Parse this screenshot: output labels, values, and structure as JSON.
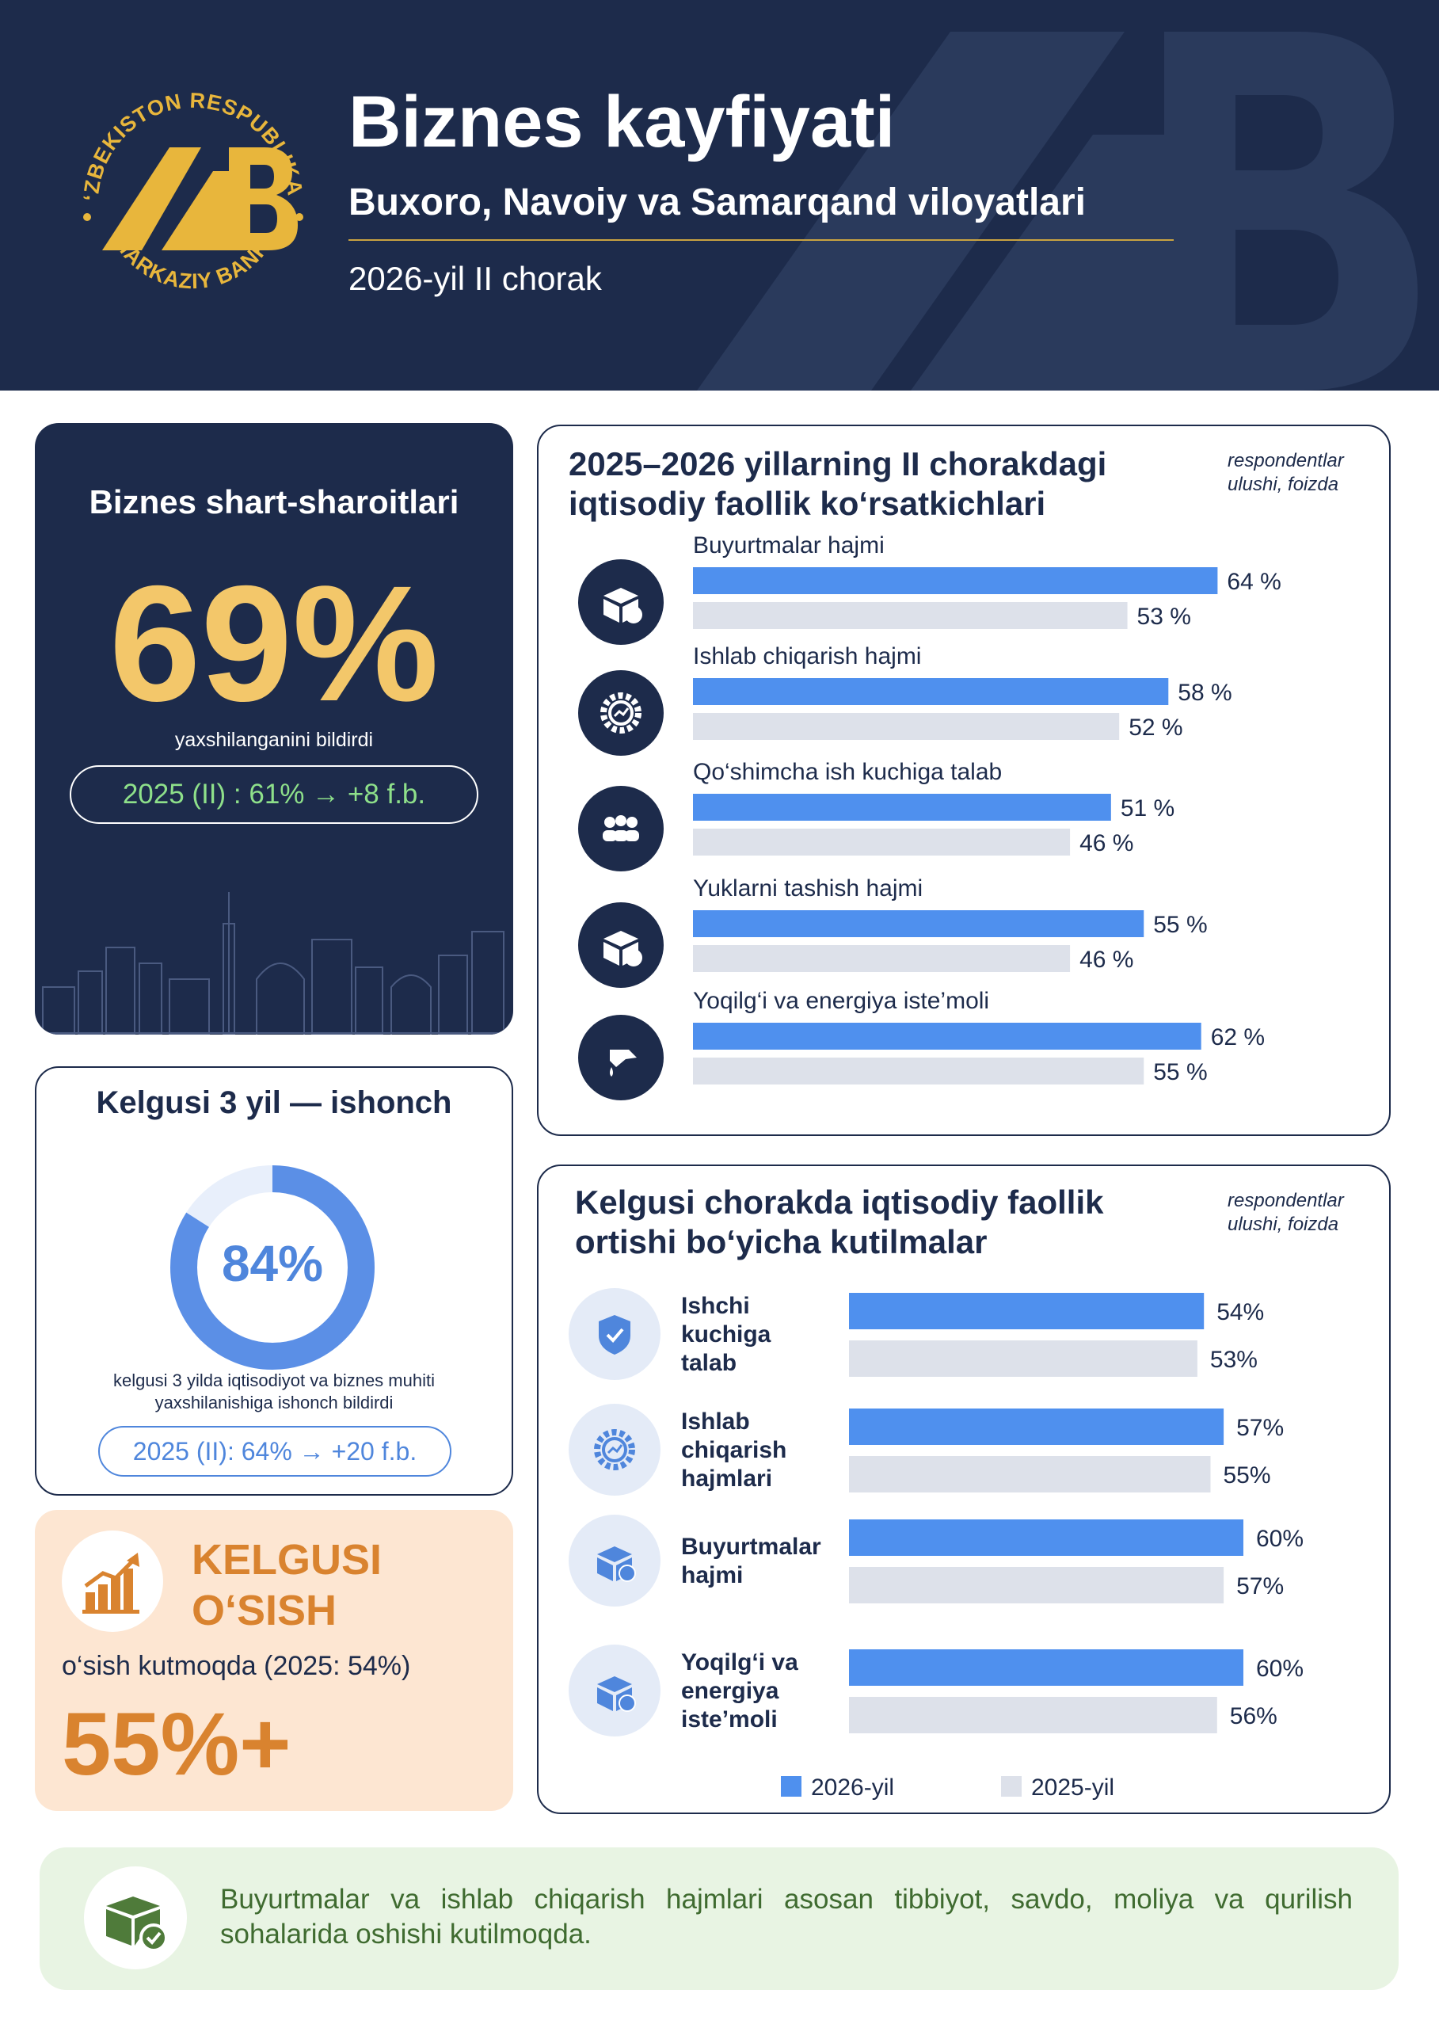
{
  "header": {
    "title": "Biznes kayfiyati",
    "subtitle": "Buxoro, Navoiy va Samarqand viloyatlari",
    "period": "2026-yil II chorak",
    "logo": {
      "ring_top": "O‘ZBEKISTON RESPUBLIKASI",
      "ring_bottom": "MARKAZIY BANKI",
      "monogram": "MB"
    }
  },
  "colors": {
    "navy": "#1d2b4b",
    "gold": "#f3c76a",
    "blue": "#4f90ee",
    "grey": "#dde1ea",
    "orange": "#d9832f",
    "green_text": "#3f6b30",
    "green_pill": "#8ee08a"
  },
  "business_conditions": {
    "title": "Biznes shart-sharoitlari",
    "value": "69%",
    "note": "yaxshilanganini bildirdi",
    "comparison": "2025 (II) : 61% → +8 f.b."
  },
  "confidence": {
    "title": "Kelgusi 3 yil — ishonch",
    "value_label": "84%",
    "value": 84,
    "note_line1": "kelgusi 3 yilda iqtisodiyot va biznes muhiti",
    "note_line2": "yaxshilanishiga  ishonch bildirdi",
    "comparison": "2025 (II): 64% → +20 f.b."
  },
  "growth": {
    "title_line1": "KELGUSI",
    "title_line2": "O‘SISH",
    "note": "o‘sish kutmoqda (2025: 54%)",
    "value": "55%+",
    "icon": "growth-chart-icon"
  },
  "footer": {
    "text": "Buyurtmalar va ishlab chiqarish hajmlari asosan tibbiyot, savdo, moliya va qurilish sohalarida oshishi kutilmoqda.",
    "icon": "boxes-check-icon"
  },
  "chart_data": [
    {
      "type": "bar",
      "orientation": "horizontal",
      "title_line1": "2025–2026 yillarning II chorakdagi",
      "title_line2": "iqtisodiy faollik ko‘rsatkichlari",
      "note_line1": "respondentlar",
      "note_line2": "ulushi, foizda",
      "categories": [
        "Buyurtmalar hajmi",
        "Ishlab chiqarish hajmi",
        "Qo‘shimcha ish kuchiga talab",
        "Yuklarni tashish hajmi",
        "Yoqilg‘i va energiya iste’moli"
      ],
      "icons": [
        "box-check-icon",
        "gear-chart-icon",
        "people-icon",
        "package-arrow-icon",
        "fuel-nozzle-icon"
      ],
      "series": [
        {
          "name": "2026-yil",
          "values": [
            64,
            58,
            51,
            55,
            62
          ],
          "labels": [
            "64 %",
            "58 %",
            "51 %",
            "55 %",
            "62 %"
          ],
          "color": "#4f90ee"
        },
        {
          "name": "2025-yil",
          "values": [
            53,
            52,
            46,
            46,
            55
          ],
          "labels": [
            "53 %",
            "52 %",
            "46 %",
            "46 %",
            "55 %"
          ],
          "color": "#dde1ea"
        }
      ]
    },
    {
      "type": "bar",
      "orientation": "horizontal",
      "title_line1": "Kelgusi chorakda iqtisodiy faollik",
      "title_line2": "ortishi bo‘yicha kutilmalar",
      "note_line1": "respondentlar",
      "note_line2": "ulushi, foizda",
      "categories": [
        [
          "Ishchi",
          "kuchiga",
          "talab"
        ],
        [
          "Ishlab",
          "chiqarish",
          "hajmlari"
        ],
        [
          "Buyurtmalar",
          "hajmi"
        ],
        [
          "Yoqilg‘i va",
          "energiya",
          "iste’moli"
        ]
      ],
      "icons": [
        "shield-check-icon",
        "gear-chart-icon",
        "box-check-icon",
        "box-check-icon"
      ],
      "series": [
        {
          "name": "2026-yil",
          "values": [
            54,
            57,
            60,
            60
          ],
          "labels": [
            "54%",
            "57%",
            "60%",
            "60%"
          ],
          "color": "#4f90ee"
        },
        {
          "name": "2025-yil",
          "values": [
            53,
            55,
            57,
            56
          ],
          "labels": [
            "53%",
            "55%",
            "57%",
            "56%"
          ],
          "color": "#dde1ea"
        }
      ],
      "legend": [
        "2026-yil",
        "2025-yil"
      ],
      "legend_position": "bottom-center"
    }
  ]
}
